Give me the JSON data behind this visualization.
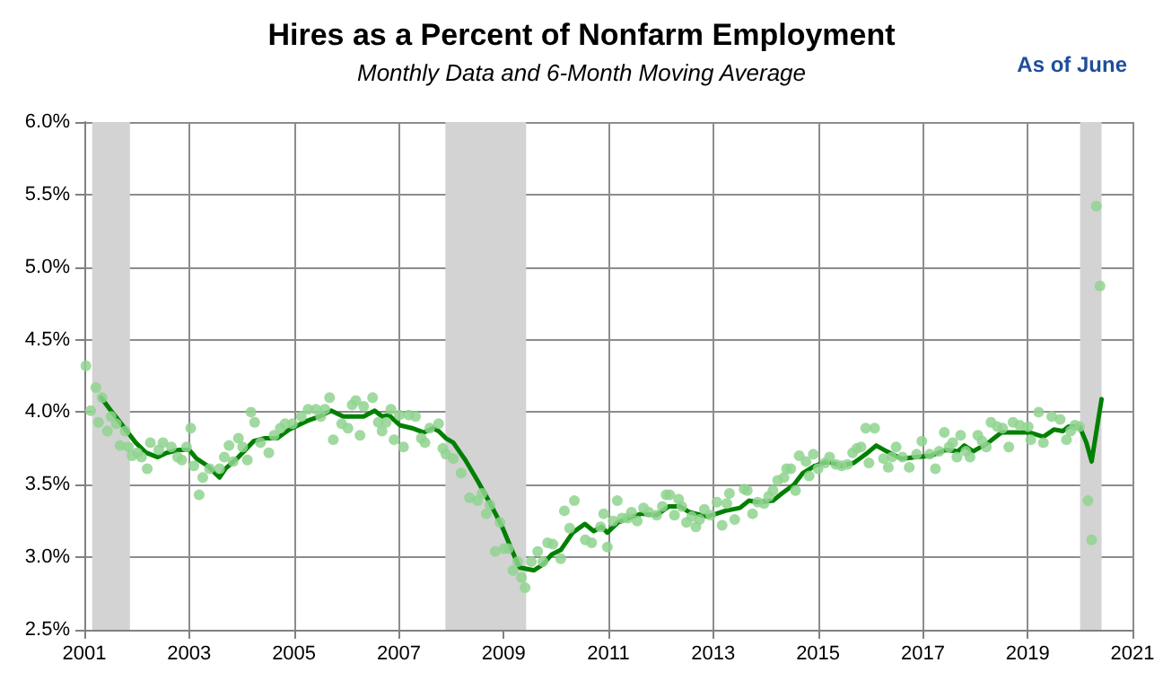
{
  "chart_data": {
    "type": "scatter",
    "title": "Hires as a Percent of Nonfarm Employment",
    "subtitle": "Monthly Data and 6-Month Moving Average",
    "annotations": [
      "As of June"
    ],
    "xlim": [
      2001,
      2021
    ],
    "xticks": [
      2001,
      2003,
      2005,
      2007,
      2009,
      2011,
      2013,
      2015,
      2017,
      2019,
      2021
    ],
    "ylim": [
      2.5,
      6.0
    ],
    "yticks": [
      {
        "value": 2.5,
        "label": "2.5%"
      },
      {
        "value": 3.0,
        "label": "3.0%"
      },
      {
        "value": 3.5,
        "label": "3.5%"
      },
      {
        "value": 4.0,
        "label": "4.0%"
      },
      {
        "value": 4.5,
        "label": "4.5%"
      },
      {
        "value": 5.0,
        "label": "5.0%"
      },
      {
        "value": 5.5,
        "label": "5.5%"
      },
      {
        "value": 6.0,
        "label": "6.0%"
      }
    ],
    "grid": true,
    "bands": [
      {
        "axis": "x",
        "from": 2001.15,
        "to": 2001.87,
        "color": "#d3d3d3"
      },
      {
        "axis": "x",
        "from": 2007.89,
        "to": 2009.43,
        "color": "#d3d3d3"
      },
      {
        "axis": "x",
        "from": 2020.0,
        "to": 2020.41,
        "color": "#d3d3d3"
      }
    ],
    "series": [
      {
        "marker": "circle",
        "color": "#8fd48f",
        "x": [
          2001.03,
          2001.12,
          2001.22,
          2001.27,
          2001.34,
          2001.44,
          2001.51,
          2001.61,
          2001.68,
          2001.78,
          2001.84,
          2001.91,
          2002.01,
          2002.09,
          2002.2,
          2002.26,
          2002.42,
          2002.5,
          2002.66,
          2002.78,
          2002.86,
          2002.95,
          2003.03,
          2003.09,
          2003.19,
          2003.26,
          2003.39,
          2003.58,
          2003.67,
          2003.76,
          2003.84,
          2003.94,
          2004.02,
          2004.11,
          2004.18,
          2004.25,
          2004.36,
          2004.52,
          2004.62,
          2004.74,
          2004.83,
          2004.97,
          2005.14,
          2005.27,
          2005.42,
          2005.51,
          2005.59,
          2005.68,
          2005.75,
          2005.91,
          2006.03,
          2006.11,
          2006.18,
          2006.26,
          2006.33,
          2006.5,
          2006.61,
          2006.68,
          2006.76,
          2006.85,
          2006.91,
          2007.01,
          2007.09,
          2007.19,
          2007.32,
          2007.43,
          2007.5,
          2007.59,
          2007.76,
          2007.84,
          2007.9,
          2008.04,
          2008.19,
          2008.35,
          2008.5,
          2008.59,
          2008.67,
          2008.74,
          2008.84,
          2008.93,
          2009.01,
          2009.09,
          2009.18,
          2009.27,
          2009.34,
          2009.41,
          2009.53,
          2009.65,
          2009.75,
          2009.84,
          2009.94,
          2010.09,
          2010.16,
          2010.26,
          2010.35,
          2010.56,
          2010.68,
          2010.85,
          2010.91,
          2010.98,
          2011.09,
          2011.17,
          2011.26,
          2011.37,
          2011.44,
          2011.55,
          2011.67,
          2011.77,
          2011.92,
          2012.03,
          2012.1,
          2012.17,
          2012.26,
          2012.34,
          2012.4,
          2012.49,
          2012.59,
          2012.67,
          2012.74,
          2012.83,
          2012.95,
          2013.07,
          2013.17,
          2013.26,
          2013.31,
          2013.41,
          2013.59,
          2013.65,
          2013.75,
          2013.85,
          2013.97,
          2014.06,
          2014.14,
          2014.23,
          2014.35,
          2014.4,
          2014.48,
          2014.57,
          2014.64,
          2014.77,
          2014.83,
          2014.91,
          2015.0,
          2015.13,
          2015.22,
          2015.34,
          2015.45,
          2015.56,
          2015.66,
          2015.74,
          2015.82,
          2015.91,
          2015.97,
          2016.08,
          2016.25,
          2016.34,
          2016.41,
          2016.49,
          2016.61,
          2016.74,
          2016.88,
          2016.98,
          2017.13,
          2017.24,
          2017.31,
          2017.41,
          2017.5,
          2017.57,
          2017.65,
          2017.72,
          2017.82,
          2017.9,
          2018.05,
          2018.13,
          2018.21,
          2018.3,
          2018.42,
          2018.52,
          2018.64,
          2018.72,
          2018.85,
          2019.01,
          2019.06,
          2019.21,
          2019.3,
          2019.46,
          2019.62,
          2019.74,
          2019.82,
          2019.9,
          2019.99,
          2020.15,
          2020.22,
          2020.31,
          2020.38
        ],
        "values": [
          4.32,
          4.01,
          4.17,
          3.93,
          4.1,
          3.87,
          3.97,
          3.92,
          3.77,
          3.87,
          3.76,
          3.7,
          3.72,
          3.69,
          3.61,
          3.79,
          3.74,
          3.79,
          3.76,
          3.69,
          3.67,
          3.76,
          3.89,
          3.63,
          3.43,
          3.55,
          3.61,
          3.61,
          3.69,
          3.77,
          3.66,
          3.82,
          3.76,
          3.67,
          4.0,
          3.93,
          3.79,
          3.72,
          3.84,
          3.89,
          3.92,
          3.92,
          3.97,
          4.02,
          4.02,
          3.97,
          4.02,
          4.1,
          3.81,
          3.92,
          3.89,
          4.05,
          4.08,
          3.84,
          4.04,
          4.1,
          3.93,
          3.87,
          3.93,
          4.02,
          3.81,
          3.98,
          3.76,
          3.98,
          3.97,
          3.82,
          3.79,
          3.89,
          3.92,
          3.75,
          3.71,
          3.68,
          3.58,
          3.41,
          3.39,
          3.44,
          3.3,
          3.36,
          3.04,
          3.24,
          3.06,
          3.06,
          2.91,
          2.97,
          2.86,
          2.79,
          2.97,
          3.04,
          2.97,
          3.1,
          3.09,
          2.99,
          3.32,
          3.2,
          3.39,
          3.12,
          3.1,
          3.21,
          3.3,
          3.07,
          3.25,
          3.39,
          3.27,
          3.27,
          3.31,
          3.25,
          3.34,
          3.31,
          3.29,
          3.35,
          3.43,
          3.43,
          3.29,
          3.4,
          3.35,
          3.24,
          3.28,
          3.21,
          3.26,
          3.33,
          3.29,
          3.38,
          3.22,
          3.37,
          3.44,
          3.26,
          3.47,
          3.46,
          3.3,
          3.38,
          3.37,
          3.42,
          3.46,
          3.53,
          3.55,
          3.61,
          3.61,
          3.46,
          3.7,
          3.66,
          3.56,
          3.71,
          3.61,
          3.65,
          3.69,
          3.64,
          3.63,
          3.64,
          3.72,
          3.75,
          3.76,
          3.89,
          3.65,
          3.89,
          3.68,
          3.62,
          3.69,
          3.76,
          3.69,
          3.62,
          3.71,
          3.8,
          3.71,
          3.61,
          3.73,
          3.86,
          3.76,
          3.79,
          3.69,
          3.84,
          3.73,
          3.69,
          3.84,
          3.8,
          3.76,
          3.93,
          3.9,
          3.89,
          3.76,
          3.93,
          3.91,
          3.9,
          3.81,
          4.0,
          3.79,
          3.97,
          3.95,
          3.81,
          3.87,
          3.91,
          3.9,
          3.39,
          3.12,
          5.42,
          4.87
        ]
      },
      {
        "type": "line",
        "marker": "none",
        "color": "#008000",
        "x": [
          2001.32,
          2001.53,
          2001.66,
          2001.83,
          2001.98,
          2002.18,
          2002.4,
          2002.57,
          2002.8,
          2003.0,
          2003.14,
          2003.35,
          2003.58,
          2003.69,
          2003.94,
          2004.23,
          2004.45,
          2004.68,
          2004.91,
          2005.25,
          2005.48,
          2005.71,
          2005.94,
          2006.33,
          2006.54,
          2006.68,
          2006.81,
          2007.02,
          2007.25,
          2007.48,
          2007.65,
          2007.76,
          2007.9,
          2008.04,
          2008.27,
          2008.5,
          2008.73,
          2008.96,
          2009.18,
          2009.3,
          2009.58,
          2009.75,
          2009.92,
          2010.09,
          2010.32,
          2010.55,
          2010.72,
          2010.87,
          2010.98,
          2011.18,
          2011.46,
          2011.63,
          2011.92,
          2012.15,
          2012.37,
          2012.55,
          2012.89,
          2013.23,
          2013.51,
          2013.68,
          2013.85,
          2014.14,
          2014.31,
          2014.54,
          2014.71,
          2014.94,
          2015.17,
          2015.45,
          2015.68,
          2015.91,
          2016.11,
          2016.31,
          2016.59,
          2016.88,
          2017.16,
          2017.44,
          2017.67,
          2017.79,
          2017.96,
          2018.25,
          2018.5,
          2018.76,
          2019.04,
          2019.3,
          2019.5,
          2019.67,
          2019.78,
          2019.99,
          2020.12,
          2020.22,
          2020.41
        ],
        "values": [
          4.1,
          4.0,
          3.94,
          3.86,
          3.79,
          3.72,
          3.69,
          3.72,
          3.74,
          3.74,
          3.68,
          3.63,
          3.55,
          3.61,
          3.69,
          3.8,
          3.82,
          3.82,
          3.88,
          3.94,
          3.97,
          4.01,
          3.97,
          3.97,
          4.01,
          3.97,
          3.98,
          3.91,
          3.89,
          3.86,
          3.89,
          3.87,
          3.82,
          3.79,
          3.67,
          3.53,
          3.38,
          3.22,
          3.03,
          2.93,
          2.91,
          2.95,
          3.02,
          3.05,
          3.17,
          3.23,
          3.18,
          3.21,
          3.17,
          3.24,
          3.28,
          3.3,
          3.29,
          3.35,
          3.35,
          3.31,
          3.28,
          3.32,
          3.34,
          3.39,
          3.38,
          3.39,
          3.44,
          3.5,
          3.58,
          3.63,
          3.66,
          3.63,
          3.65,
          3.71,
          3.77,
          3.73,
          3.68,
          3.69,
          3.7,
          3.74,
          3.73,
          3.77,
          3.73,
          3.79,
          3.86,
          3.86,
          3.86,
          3.83,
          3.88,
          3.87,
          3.9,
          3.9,
          3.79,
          3.66,
          4.09
        ]
      }
    ]
  }
}
